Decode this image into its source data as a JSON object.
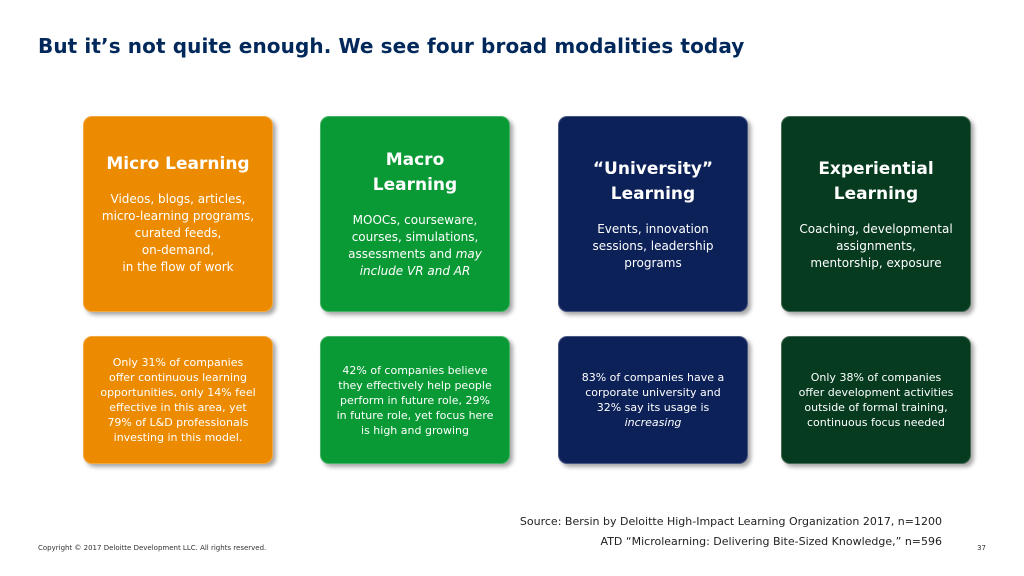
{
  "title": "But it’s not quite enough.  We see four broad modalities today",
  "modalities": [
    {
      "title": "Micro Learning",
      "body_lines": [
        "Videos, blogs, articles,",
        "micro-learning programs,",
        "curated feeds,",
        "on-demand,",
        "in the flow of work"
      ],
      "stat_lines": [
        "Only 31% of companies",
        "offer continuous learning",
        "opportunities, only 14% feel",
        "effective in this area, yet",
        "79% of L&D professionals",
        "investing in this model."
      ],
      "color": "#ed8b00"
    },
    {
      "title_lines": [
        "Macro",
        "Learning"
      ],
      "body_lines": [
        "MOOCs, courseware,",
        "courses, simulations,"
      ],
      "body_line3_plain": "assessments and ",
      "body_line3_italic": "may",
      "body_line4_italic": "include VR and AR",
      "stat_lines": [
        "42% of companies believe",
        "they effectively help people",
        "perform in future role, 29%",
        "in future role, yet focus here",
        "is high and growing"
      ],
      "color": "#0a9a35"
    },
    {
      "title_lines": [
        "“University”",
        "Learning"
      ],
      "body_lines": [
        "Events, innovation",
        "sessions, leadership",
        "programs"
      ],
      "stat_lines": [
        "83% of companies have a",
        "corporate university and",
        "32% say its usage is"
      ],
      "stat_italic": "increasing",
      "color": "#0d2159"
    },
    {
      "title_lines": [
        "Experiential",
        "Learning"
      ],
      "body_lines": [
        "Coaching, developmental",
        "assignments,",
        "mentorship, exposure"
      ],
      "stat_lines": [
        "Only 38% of companies",
        "offer development activities",
        "outside of formal training,",
        "continuous focus needed"
      ],
      "color": "#063b1f"
    }
  ],
  "sources": [
    "Source: Bersin by Deloitte High-Impact Learning Organization 2017, n=1200",
    "ATD “Microlearning: Delivering Bite-Sized Knowledge,” n=596"
  ],
  "footer": {
    "copyright": "Copyright © 2017 Deloitte Development LLC. All rights reserved.",
    "page_number": "37"
  }
}
